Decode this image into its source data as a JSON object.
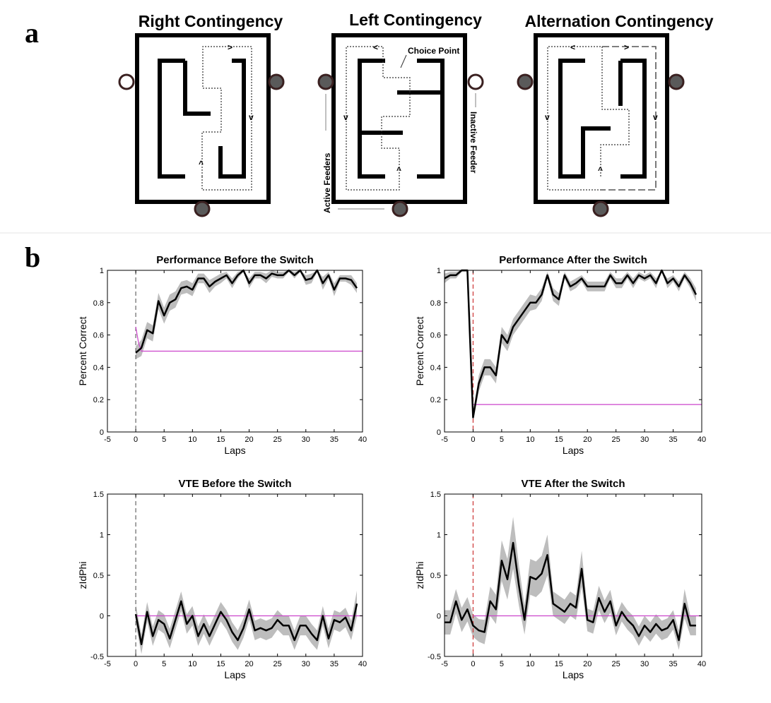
{
  "panel_labels": {
    "a": "a",
    "b": "b"
  },
  "mazes": {
    "right": {
      "title": "Right Contingency"
    },
    "left": {
      "title": "Left Contingency",
      "choice_point": "Choice Point",
      "active_feeders": "Active Feeders",
      "inactive_feeder": "Inactive Feeder"
    },
    "alternation": {
      "title": "Alternation Contingency"
    }
  },
  "colors": {
    "line": "#000000",
    "band": "#bdbdbd",
    "chance": "#cc44cc",
    "switch_before": "#666666",
    "switch_after": "#cc3333",
    "feeder_active": "#5a5a5a",
    "feeder_rim": "#3a2020"
  },
  "chart_data": [
    {
      "id": "perf-before",
      "type": "line",
      "title": "Performance Before the Switch",
      "xlabel": "Laps",
      "ylabel": "Percent Correct",
      "xlim": [
        -5,
        40
      ],
      "ylim": [
        0,
        1
      ],
      "xticks": [
        -5,
        0,
        5,
        10,
        15,
        20,
        25,
        30,
        35,
        40
      ],
      "yticks": [
        0,
        0.2,
        0.4,
        0.6,
        0.8,
        1
      ],
      "switch_style": "gray",
      "x": [
        0,
        1,
        2,
        3,
        4,
        5,
        6,
        7,
        8,
        9,
        10,
        11,
        12,
        13,
        14,
        15,
        16,
        17,
        18,
        19,
        20,
        21,
        22,
        23,
        24,
        25,
        26,
        27,
        28,
        29,
        30,
        31,
        32,
        33,
        34,
        35,
        36,
        37,
        38,
        39
      ],
      "y": [
        0.49,
        0.52,
        0.63,
        0.61,
        0.81,
        0.72,
        0.8,
        0.82,
        0.89,
        0.9,
        0.88,
        0.95,
        0.95,
        0.9,
        0.93,
        0.95,
        0.97,
        0.92,
        0.97,
        1.0,
        0.92,
        0.97,
        0.97,
        0.95,
        0.98,
        0.97,
        0.97,
        1.0,
        0.97,
        1.0,
        0.94,
        0.95,
        1.0,
        0.92,
        0.97,
        0.88,
        0.95,
        0.95,
        0.94,
        0.89
      ],
      "err": [
        0.04,
        0.05,
        0.05,
        0.05,
        0.05,
        0.05,
        0.05,
        0.05,
        0.04,
        0.04,
        0.04,
        0.03,
        0.03,
        0.04,
        0.03,
        0.03,
        0.02,
        0.03,
        0.02,
        0.01,
        0.03,
        0.02,
        0.02,
        0.03,
        0.02,
        0.02,
        0.02,
        0.01,
        0.02,
        0.01,
        0.03,
        0.03,
        0.01,
        0.04,
        0.02,
        0.04,
        0.02,
        0.02,
        0.03,
        0.03
      ],
      "chance": {
        "x": [
          0,
          0.5,
          1,
          40
        ],
        "y": [
          0.65,
          0.55,
          0.5,
          0.5
        ]
      }
    },
    {
      "id": "perf-after",
      "type": "line",
      "title": "Performance After the Switch",
      "xlabel": "Laps",
      "ylabel": "Percent Correct",
      "xlim": [
        -5,
        40
      ],
      "ylim": [
        0,
        1
      ],
      "xticks": [
        -5,
        0,
        5,
        10,
        15,
        20,
        25,
        30,
        35,
        40
      ],
      "yticks": [
        0,
        0.2,
        0.4,
        0.6,
        0.8,
        1
      ],
      "switch_style": "red",
      "x": [
        -5,
        -4,
        -3,
        -2,
        -1,
        0,
        1,
        2,
        3,
        4,
        5,
        6,
        7,
        8,
        9,
        10,
        11,
        12,
        13,
        14,
        15,
        16,
        17,
        18,
        19,
        20,
        21,
        22,
        23,
        24,
        25,
        26,
        27,
        28,
        29,
        30,
        31,
        32,
        33,
        34,
        35,
        36,
        37,
        38,
        39
      ],
      "y": [
        0.95,
        0.97,
        0.97,
        1.0,
        1.0,
        0.09,
        0.3,
        0.4,
        0.4,
        0.35,
        0.6,
        0.55,
        0.65,
        0.7,
        0.75,
        0.8,
        0.8,
        0.85,
        0.97,
        0.85,
        0.82,
        0.97,
        0.9,
        0.92,
        0.95,
        0.9,
        0.9,
        0.9,
        0.9,
        0.97,
        0.92,
        0.92,
        0.97,
        0.92,
        0.97,
        0.95,
        0.97,
        0.92,
        1.0,
        0.92,
        0.95,
        0.9,
        0.97,
        0.92,
        0.85
      ],
      "err": [
        0.03,
        0.02,
        0.02,
        0.01,
        0.01,
        0.03,
        0.05,
        0.05,
        0.05,
        0.05,
        0.05,
        0.05,
        0.05,
        0.05,
        0.05,
        0.05,
        0.04,
        0.04,
        0.02,
        0.04,
        0.04,
        0.02,
        0.03,
        0.03,
        0.02,
        0.03,
        0.03,
        0.03,
        0.03,
        0.02,
        0.03,
        0.03,
        0.02,
        0.03,
        0.02,
        0.02,
        0.02,
        0.03,
        0.01,
        0.03,
        0.02,
        0.03,
        0.02,
        0.03,
        0.04
      ],
      "chance": {
        "x": [
          0,
          40
        ],
        "y": [
          0.17,
          0.17
        ]
      }
    },
    {
      "id": "vte-before",
      "type": "line",
      "title": "VTE Before the Switch",
      "xlabel": "Laps",
      "ylabel": "zIdPhi",
      "xlim": [
        -5,
        40
      ],
      "ylim": [
        -0.5,
        1.5
      ],
      "xticks": [
        -5,
        0,
        5,
        10,
        15,
        20,
        25,
        30,
        35,
        40
      ],
      "yticks": [
        -0.5,
        0,
        0.5,
        1,
        1.5
      ],
      "switch_style": "gray",
      "x": [
        0,
        1,
        2,
        3,
        4,
        5,
        6,
        7,
        8,
        9,
        10,
        11,
        12,
        13,
        14,
        15,
        16,
        17,
        18,
        19,
        20,
        21,
        22,
        23,
        24,
        25,
        26,
        27,
        28,
        29,
        30,
        31,
        32,
        33,
        34,
        35,
        36,
        37,
        38,
        39
      ],
      "y": [
        0.02,
        -0.35,
        0.05,
        -0.25,
        -0.05,
        -0.1,
        -0.28,
        -0.05,
        0.18,
        -0.1,
        0.0,
        -0.25,
        -0.1,
        -0.25,
        -0.1,
        0.05,
        -0.05,
        -0.2,
        -0.3,
        -0.15,
        0.08,
        -0.18,
        -0.15,
        -0.18,
        -0.15,
        -0.05,
        -0.12,
        -0.12,
        -0.3,
        -0.12,
        -0.12,
        -0.22,
        -0.3,
        0.0,
        -0.28,
        -0.05,
        -0.08,
        -0.02,
        -0.18,
        0.15
      ],
      "err": [
        0.12,
        0.12,
        0.12,
        0.12,
        0.12,
        0.12,
        0.12,
        0.12,
        0.12,
        0.12,
        0.12,
        0.12,
        0.12,
        0.12,
        0.12,
        0.12,
        0.12,
        0.12,
        0.12,
        0.12,
        0.12,
        0.12,
        0.12,
        0.12,
        0.12,
        0.12,
        0.12,
        0.12,
        0.12,
        0.12,
        0.12,
        0.12,
        0.12,
        0.12,
        0.12,
        0.12,
        0.12,
        0.12,
        0.12,
        0.16
      ],
      "chance": {
        "x": [
          0,
          40
        ],
        "y": [
          0,
          0
        ]
      }
    },
    {
      "id": "vte-after",
      "type": "line",
      "title": "VTE After the Switch",
      "xlabel": "Laps",
      "ylabel": "zIdPhi",
      "xlim": [
        -5,
        40
      ],
      "ylim": [
        -0.5,
        1.5
      ],
      "xticks": [
        -5,
        0,
        5,
        10,
        15,
        20,
        25,
        30,
        35,
        40
      ],
      "yticks": [
        -0.5,
        0,
        0.5,
        1,
        1.5
      ],
      "switch_style": "red",
      "x": [
        -5,
        -4,
        -3,
        -2,
        -1,
        0,
        1,
        2,
        3,
        4,
        5,
        6,
        7,
        8,
        9,
        10,
        11,
        12,
        13,
        14,
        15,
        16,
        17,
        18,
        19,
        20,
        21,
        22,
        23,
        24,
        25,
        26,
        27,
        28,
        29,
        30,
        31,
        32,
        33,
        34,
        35,
        36,
        37,
        38,
        39
      ],
      "y": [
        -0.08,
        -0.08,
        0.18,
        -0.05,
        0.08,
        -0.12,
        -0.18,
        -0.2,
        0.18,
        0.08,
        0.68,
        0.45,
        0.9,
        0.38,
        -0.05,
        0.48,
        0.45,
        0.52,
        0.75,
        0.15,
        0.1,
        0.05,
        0.15,
        0.1,
        0.58,
        -0.05,
        -0.08,
        0.22,
        0.05,
        0.18,
        -0.12,
        0.05,
        -0.05,
        -0.12,
        -0.25,
        -0.12,
        -0.2,
        -0.1,
        -0.18,
        -0.15,
        -0.05,
        -0.3,
        0.15,
        -0.12,
        -0.12
      ],
      "err": [
        0.15,
        0.15,
        0.15,
        0.15,
        0.15,
        0.14,
        0.14,
        0.15,
        0.18,
        0.18,
        0.25,
        0.25,
        0.32,
        0.25,
        0.18,
        0.22,
        0.22,
        0.22,
        0.25,
        0.15,
        0.15,
        0.15,
        0.15,
        0.15,
        0.22,
        0.14,
        0.14,
        0.15,
        0.14,
        0.14,
        0.12,
        0.12,
        0.12,
        0.12,
        0.12,
        0.12,
        0.12,
        0.12,
        0.12,
        0.12,
        0.12,
        0.12,
        0.18,
        0.12,
        0.12
      ],
      "chance": {
        "x": [
          0,
          40
        ],
        "y": [
          0,
          0
        ]
      }
    }
  ]
}
